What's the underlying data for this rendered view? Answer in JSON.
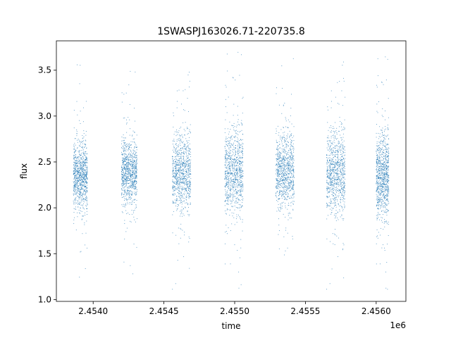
{
  "chart_data": {
    "type": "scatter",
    "title": "1SWASPJ163026.71-220735.8",
    "xlabel": "time",
    "ylabel": "flux",
    "x_offset_label": "1e6",
    "xlim": [
      2453740,
      2456210
    ],
    "ylim": [
      0.98,
      3.82
    ],
    "x_ticks": [
      2454000,
      2454500,
      2455000,
      2455500,
      2456000
    ],
    "x_tick_labels": [
      "2.4540",
      "2.4545",
      "2.4550",
      "2.4555",
      "2.4560"
    ],
    "y_ticks": [
      1.0,
      1.5,
      2.0,
      2.5,
      3.0,
      3.5
    ],
    "y_tick_labels": [
      "1.0",
      "1.5",
      "2.0",
      "2.5",
      "3.0",
      "3.5"
    ],
    "grid": false,
    "marker_color": "#1f77b4",
    "seasons": [
      {
        "x_start": 2453860,
        "x_end": 2453960,
        "y_center": 2.35,
        "y_spread": 0.18
      },
      {
        "x_start": 2454200,
        "x_end": 2454310,
        "y_center": 2.38,
        "y_spread": 0.17
      },
      {
        "x_start": 2454560,
        "x_end": 2454690,
        "y_center": 2.38,
        "y_spread": 0.2
      },
      {
        "x_start": 2454930,
        "x_end": 2455060,
        "y_center": 2.4,
        "y_spread": 0.22
      },
      {
        "x_start": 2455290,
        "x_end": 2455420,
        "y_center": 2.4,
        "y_spread": 0.2
      },
      {
        "x_start": 2455650,
        "x_end": 2455780,
        "y_center": 2.38,
        "y_spread": 0.22
      },
      {
        "x_start": 2456000,
        "x_end": 2456090,
        "y_center": 2.35,
        "y_spread": 0.22
      }
    ]
  }
}
